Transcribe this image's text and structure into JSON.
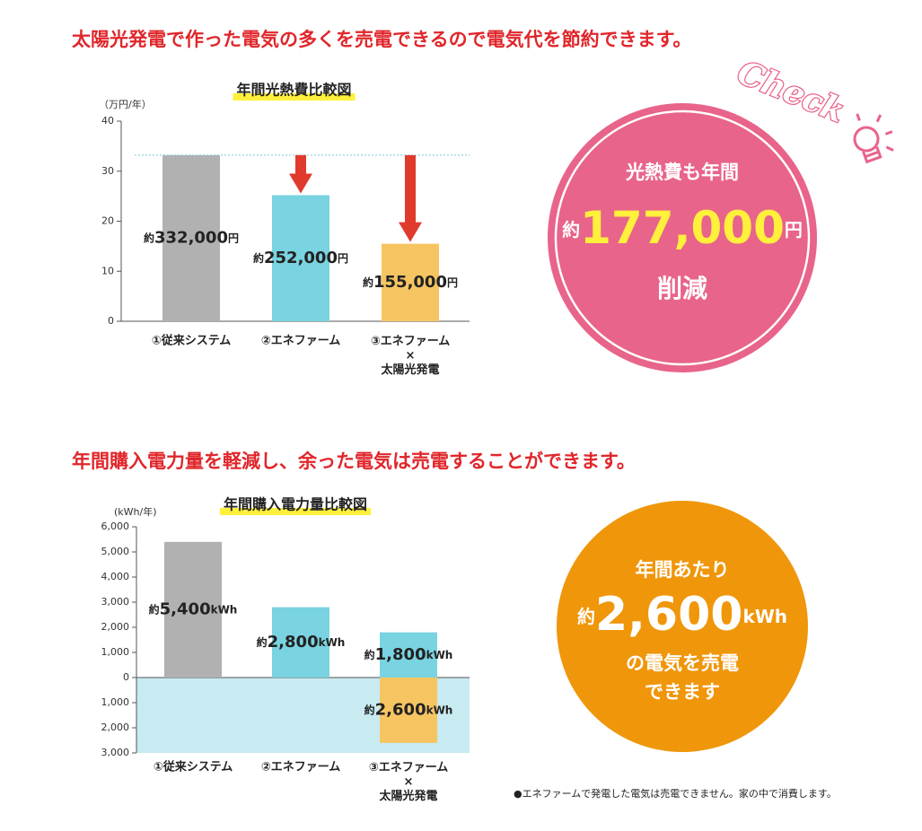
{
  "chart_data": [
    {
      "type": "bar",
      "heading": "太陽光発電で作った電気の多くを売電できるので電気代を節約できます。",
      "title": "年間光熱費比較図",
      "y_unit": "（万円/年）",
      "categories": [
        "①従来システム",
        "②エネファーム",
        "③エネファーム\n×\n太陽光発電"
      ],
      "series": [
        {
          "values": [
            33.2,
            25.2,
            15.5
          ],
          "value_labels": [
            "約332,000円",
            "約252,000円",
            "約155,000円"
          ],
          "colors": [
            "#b1b1b1",
            "#7ad3e0",
            "#f6c562"
          ]
        }
      ],
      "ylim": [
        0,
        40
      ],
      "yticks": [
        0,
        10,
        20,
        30,
        40
      ],
      "reference_line": true,
      "reference_color": "#7cc6d6",
      "arrows": true,
      "arrow_color": "#e03a2c",
      "badge": "Check",
      "callout": {
        "lead": "光熱費も年間",
        "amount": "約177,000円",
        "tail": "削減",
        "color": "#e8648a"
      }
    },
    {
      "type": "bar",
      "heading": "年間購入電力量を軽減し、余った電気は売電することができます。",
      "title": "年間購入電力量比較図",
      "y_unit": "(kWh/年)",
      "categories": [
        "①従来システム",
        "②エネファーム",
        "③エネファーム\n×\n太陽光発電"
      ],
      "series": [
        {
          "values": [
            5400,
            2800,
            1800
          ],
          "value_labels": [
            "約5,400kWh",
            "約2,800kWh",
            "約1,800kWh"
          ],
          "colors": [
            "#b1b1b1",
            "#7ad3e0",
            "#7ad3e0"
          ]
        },
        {
          "values": [
            null,
            null,
            -2600
          ],
          "value_labels": [
            null,
            null,
            "約2,600kWh"
          ],
          "colors": [
            null,
            null,
            "#f6c562"
          ]
        }
      ],
      "ylim": [
        -3000,
        6000
      ],
      "yticks": [
        {
          "value": 6000,
          "label": "6,000"
        },
        {
          "value": 5000,
          "label": "5,000"
        },
        {
          "value": 4000,
          "label": "4,000"
        },
        {
          "value": 3000,
          "label": "3,000"
        },
        {
          "value": 2000,
          "label": "2,000"
        },
        {
          "value": 1000,
          "label": "1,000"
        },
        0,
        {
          "value": -1000,
          "label": "1,000"
        },
        {
          "value": -2000,
          "label": "2,000"
        },
        {
          "value": -3000,
          "label": "3,000"
        }
      ],
      "negative_fill": "#c7ebf1",
      "callout": {
        "lead": "年間あたり",
        "amount": "約2,600kWh",
        "tail": "の電気を売電\nできます",
        "color": "#f0960b"
      },
      "note": "●エネファームで発電した電気は売電できません。家の中で消費します。"
    }
  ]
}
